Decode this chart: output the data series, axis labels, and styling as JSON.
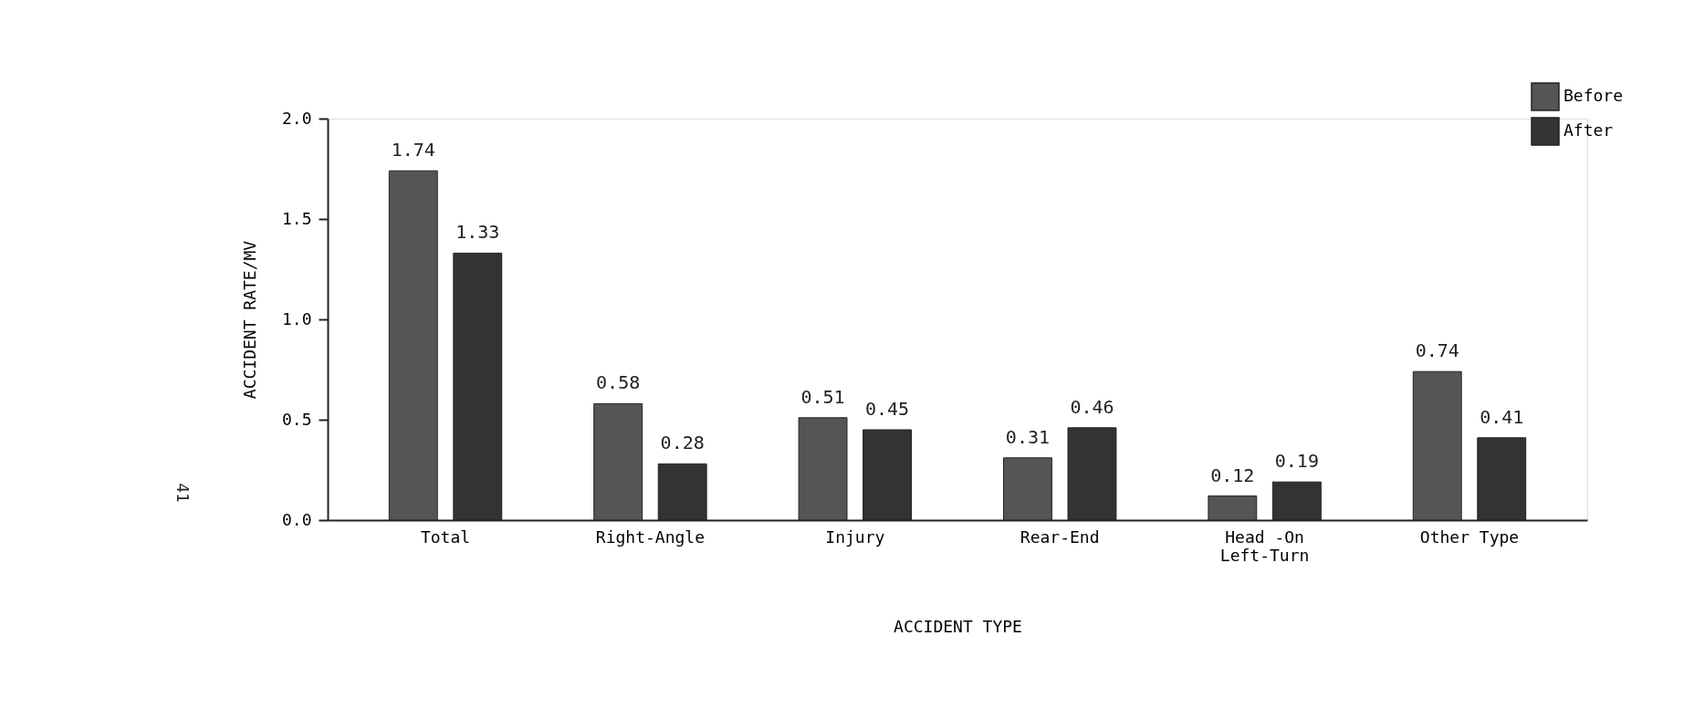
{
  "chart_data": {
    "type": "bar",
    "xlabel": "ACCIDENT TYPE",
    "ylabel": "ACCIDENT RATE/MV",
    "categories": [
      "Total",
      "Right-Angle",
      "Injury",
      "Rear-End",
      "Head -On\nLeft-Turn",
      "Other Type"
    ],
    "series": [
      {
        "name": "Before",
        "color": "#555555",
        "values": [
          1.74,
          0.58,
          0.51,
          0.31,
          0.12,
          0.74
        ]
      },
      {
        "name": "After",
        "color": "#333333",
        "values": [
          1.33,
          0.28,
          0.45,
          0.46,
          0.19,
          0.41
        ]
      }
    ],
    "ylim": [
      0,
      2.0
    ],
    "yticks": [
      {
        "value": 0,
        "label": "0.0"
      },
      {
        "value": 0.5,
        "label": "0.5"
      },
      {
        "value": 1.0,
        "label": "1.0"
      },
      {
        "value": 1.5,
        "label": "1.5"
      },
      {
        "value": 2.0,
        "label": "2.0"
      }
    ],
    "data_labels": true,
    "legend": "top right",
    "grid": false,
    "annotations": [
      "41"
    ]
  }
}
